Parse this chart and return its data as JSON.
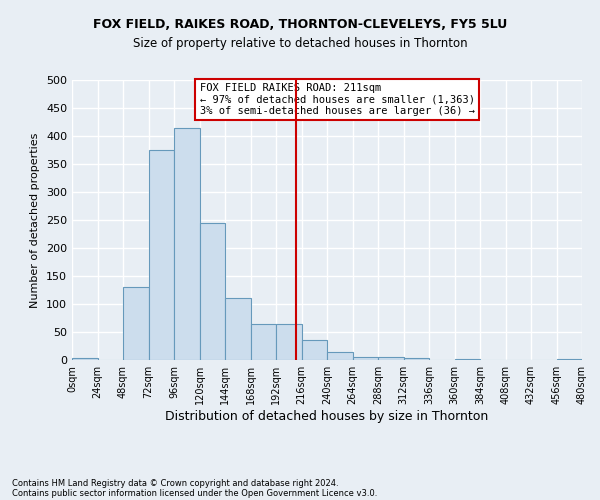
{
  "title1": "FOX FIELD, RAIKES ROAD, THORNTON-CLEVELEYS, FY5 5LU",
  "title2": "Size of property relative to detached houses in Thornton",
  "xlabel": "Distribution of detached houses by size in Thornton",
  "ylabel": "Number of detached properties",
  "footer1": "Contains HM Land Registry data © Crown copyright and database right 2024.",
  "footer2": "Contains public sector information licensed under the Open Government Licence v3.0.",
  "annotation_title": "FOX FIELD RAIKES ROAD: 211sqm",
  "annotation_line1": "← 97% of detached houses are smaller (1,363)",
  "annotation_line2": "3% of semi-detached houses are larger (36) →",
  "property_size": 211,
  "bin_width": 24,
  "bins_start": 0,
  "num_bins": 20,
  "bar_values": [
    4,
    0,
    130,
    375,
    415,
    245,
    110,
    65,
    65,
    35,
    14,
    6,
    5,
    3,
    0,
    1,
    0,
    0,
    0,
    2
  ],
  "bar_color": "#ccdded",
  "bar_edge_color": "#6699bb",
  "vline_color": "#cc0000",
  "vline_x": 211,
  "ylim": [
    0,
    500
  ],
  "xlim": [
    0,
    480
  ],
  "yticks": [
    0,
    50,
    100,
    150,
    200,
    250,
    300,
    350,
    400,
    450,
    500
  ],
  "bg_color": "#e8eef4",
  "grid_color": "#ffffff",
  "annotation_box_color": "#ffffff",
  "annotation_box_edge": "#cc0000"
}
